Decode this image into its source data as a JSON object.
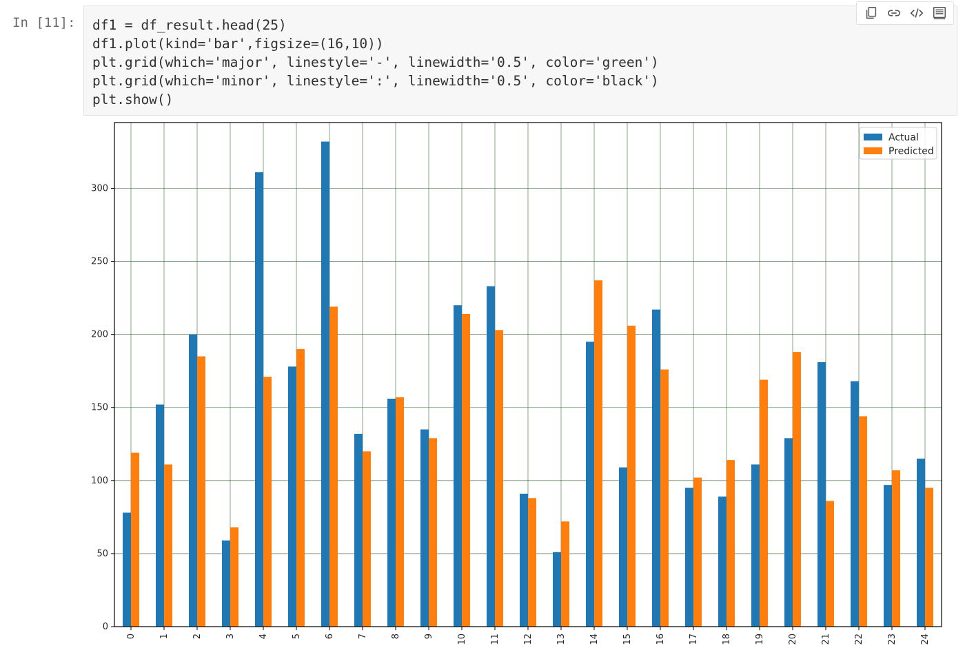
{
  "cell": {
    "prompt": "In [11]:",
    "code_lines": [
      "df1 = df_result.head(25)",
      "df1.plot(kind='bar',figsize=(16,10))",
      "plt.grid(which='major', linestyle='-', linewidth='0.5', color='green')",
      "plt.grid(which='minor', linestyle=':', linewidth='0.5', color='black')",
      "plt.show()"
    ],
    "toolbar": {
      "copy_icon": "copy-icon",
      "link_icon": "link-icon",
      "code_icon": "code-icon",
      "output_icon": "output-icon"
    }
  },
  "chart_data": {
    "type": "bar",
    "categories": [
      "0",
      "1",
      "2",
      "3",
      "4",
      "5",
      "6",
      "7",
      "8",
      "9",
      "10",
      "11",
      "12",
      "13",
      "14",
      "15",
      "16",
      "17",
      "18",
      "19",
      "20",
      "21",
      "22",
      "23",
      "24"
    ],
    "series": [
      {
        "name": "Actual",
        "color": "#1f77b4",
        "values": [
          78,
          152,
          200,
          59,
          311,
          178,
          332,
          132,
          156,
          135,
          220,
          233,
          91,
          51,
          195,
          109,
          217,
          95,
          89,
          111,
          129,
          181,
          168,
          97,
          115
        ]
      },
      {
        "name": "Predicted",
        "color": "#ff7f0e",
        "values": [
          119,
          111,
          185,
          68,
          171,
          190,
          219,
          120,
          157,
          129,
          214,
          203,
          88,
          72,
          237,
          206,
          176,
          102,
          114,
          169,
          188,
          86,
          144,
          107,
          95
        ]
      }
    ],
    "ylim": [
      0,
      345
    ],
    "yticks": [
      0,
      50,
      100,
      150,
      200,
      250,
      300
    ],
    "grid": {
      "major_color": "#2e6b2e",
      "on": true
    },
    "legend_position": "top-right",
    "xtick_rotation": "vertical"
  }
}
